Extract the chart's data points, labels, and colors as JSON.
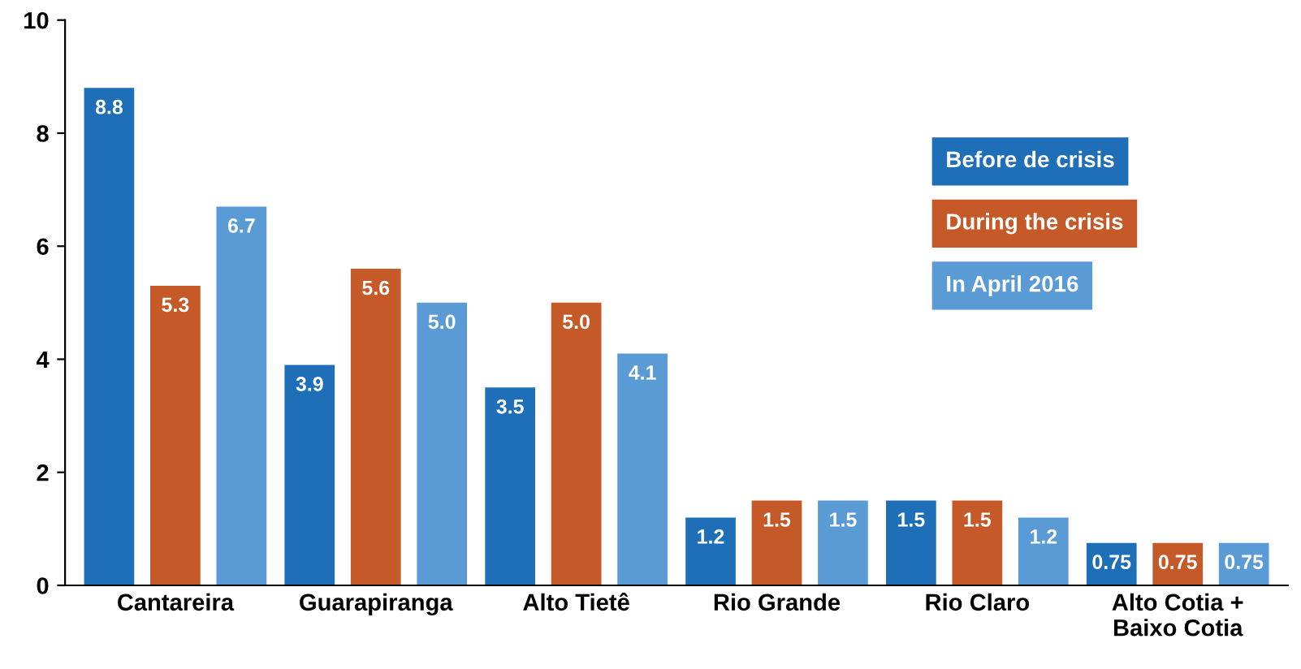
{
  "chart_data": {
    "type": "bar",
    "categories": [
      "Cantareira",
      "Guarapiranga",
      "Alto Tietê",
      "Rio Grande",
      "Rio Claro",
      "Alto Cotia +\nBaixo Cotia"
    ],
    "series": [
      {
        "name": "Before de crisis",
        "color": "#1f6fb8",
        "values": [
          8.8,
          3.9,
          3.5,
          1.2,
          1.5,
          0.75
        ],
        "value_labels": [
          "8.8",
          "3.9",
          "3.5",
          "1.2",
          "1.5",
          "0.75"
        ]
      },
      {
        "name": "During the crisis",
        "color": "#c55a28",
        "values": [
          5.3,
          5.6,
          5.0,
          1.5,
          1.5,
          0.75
        ],
        "value_labels": [
          "5.3",
          "5.6",
          "5.0",
          "1.5",
          "1.5",
          "0.75"
        ]
      },
      {
        "name": "In April 2016",
        "color": "#5b9bd5",
        "values": [
          6.7,
          5.0,
          4.1,
          1.5,
          1.2,
          0.75
        ],
        "value_labels": [
          "6.7",
          "5.0",
          "4.1",
          "1.5",
          "1.2",
          "0.75"
        ]
      }
    ],
    "ylim": [
      0,
      10
    ],
    "yticks": [
      0,
      2,
      4,
      6,
      8,
      10
    ],
    "grid": false,
    "legend": "top right"
  }
}
